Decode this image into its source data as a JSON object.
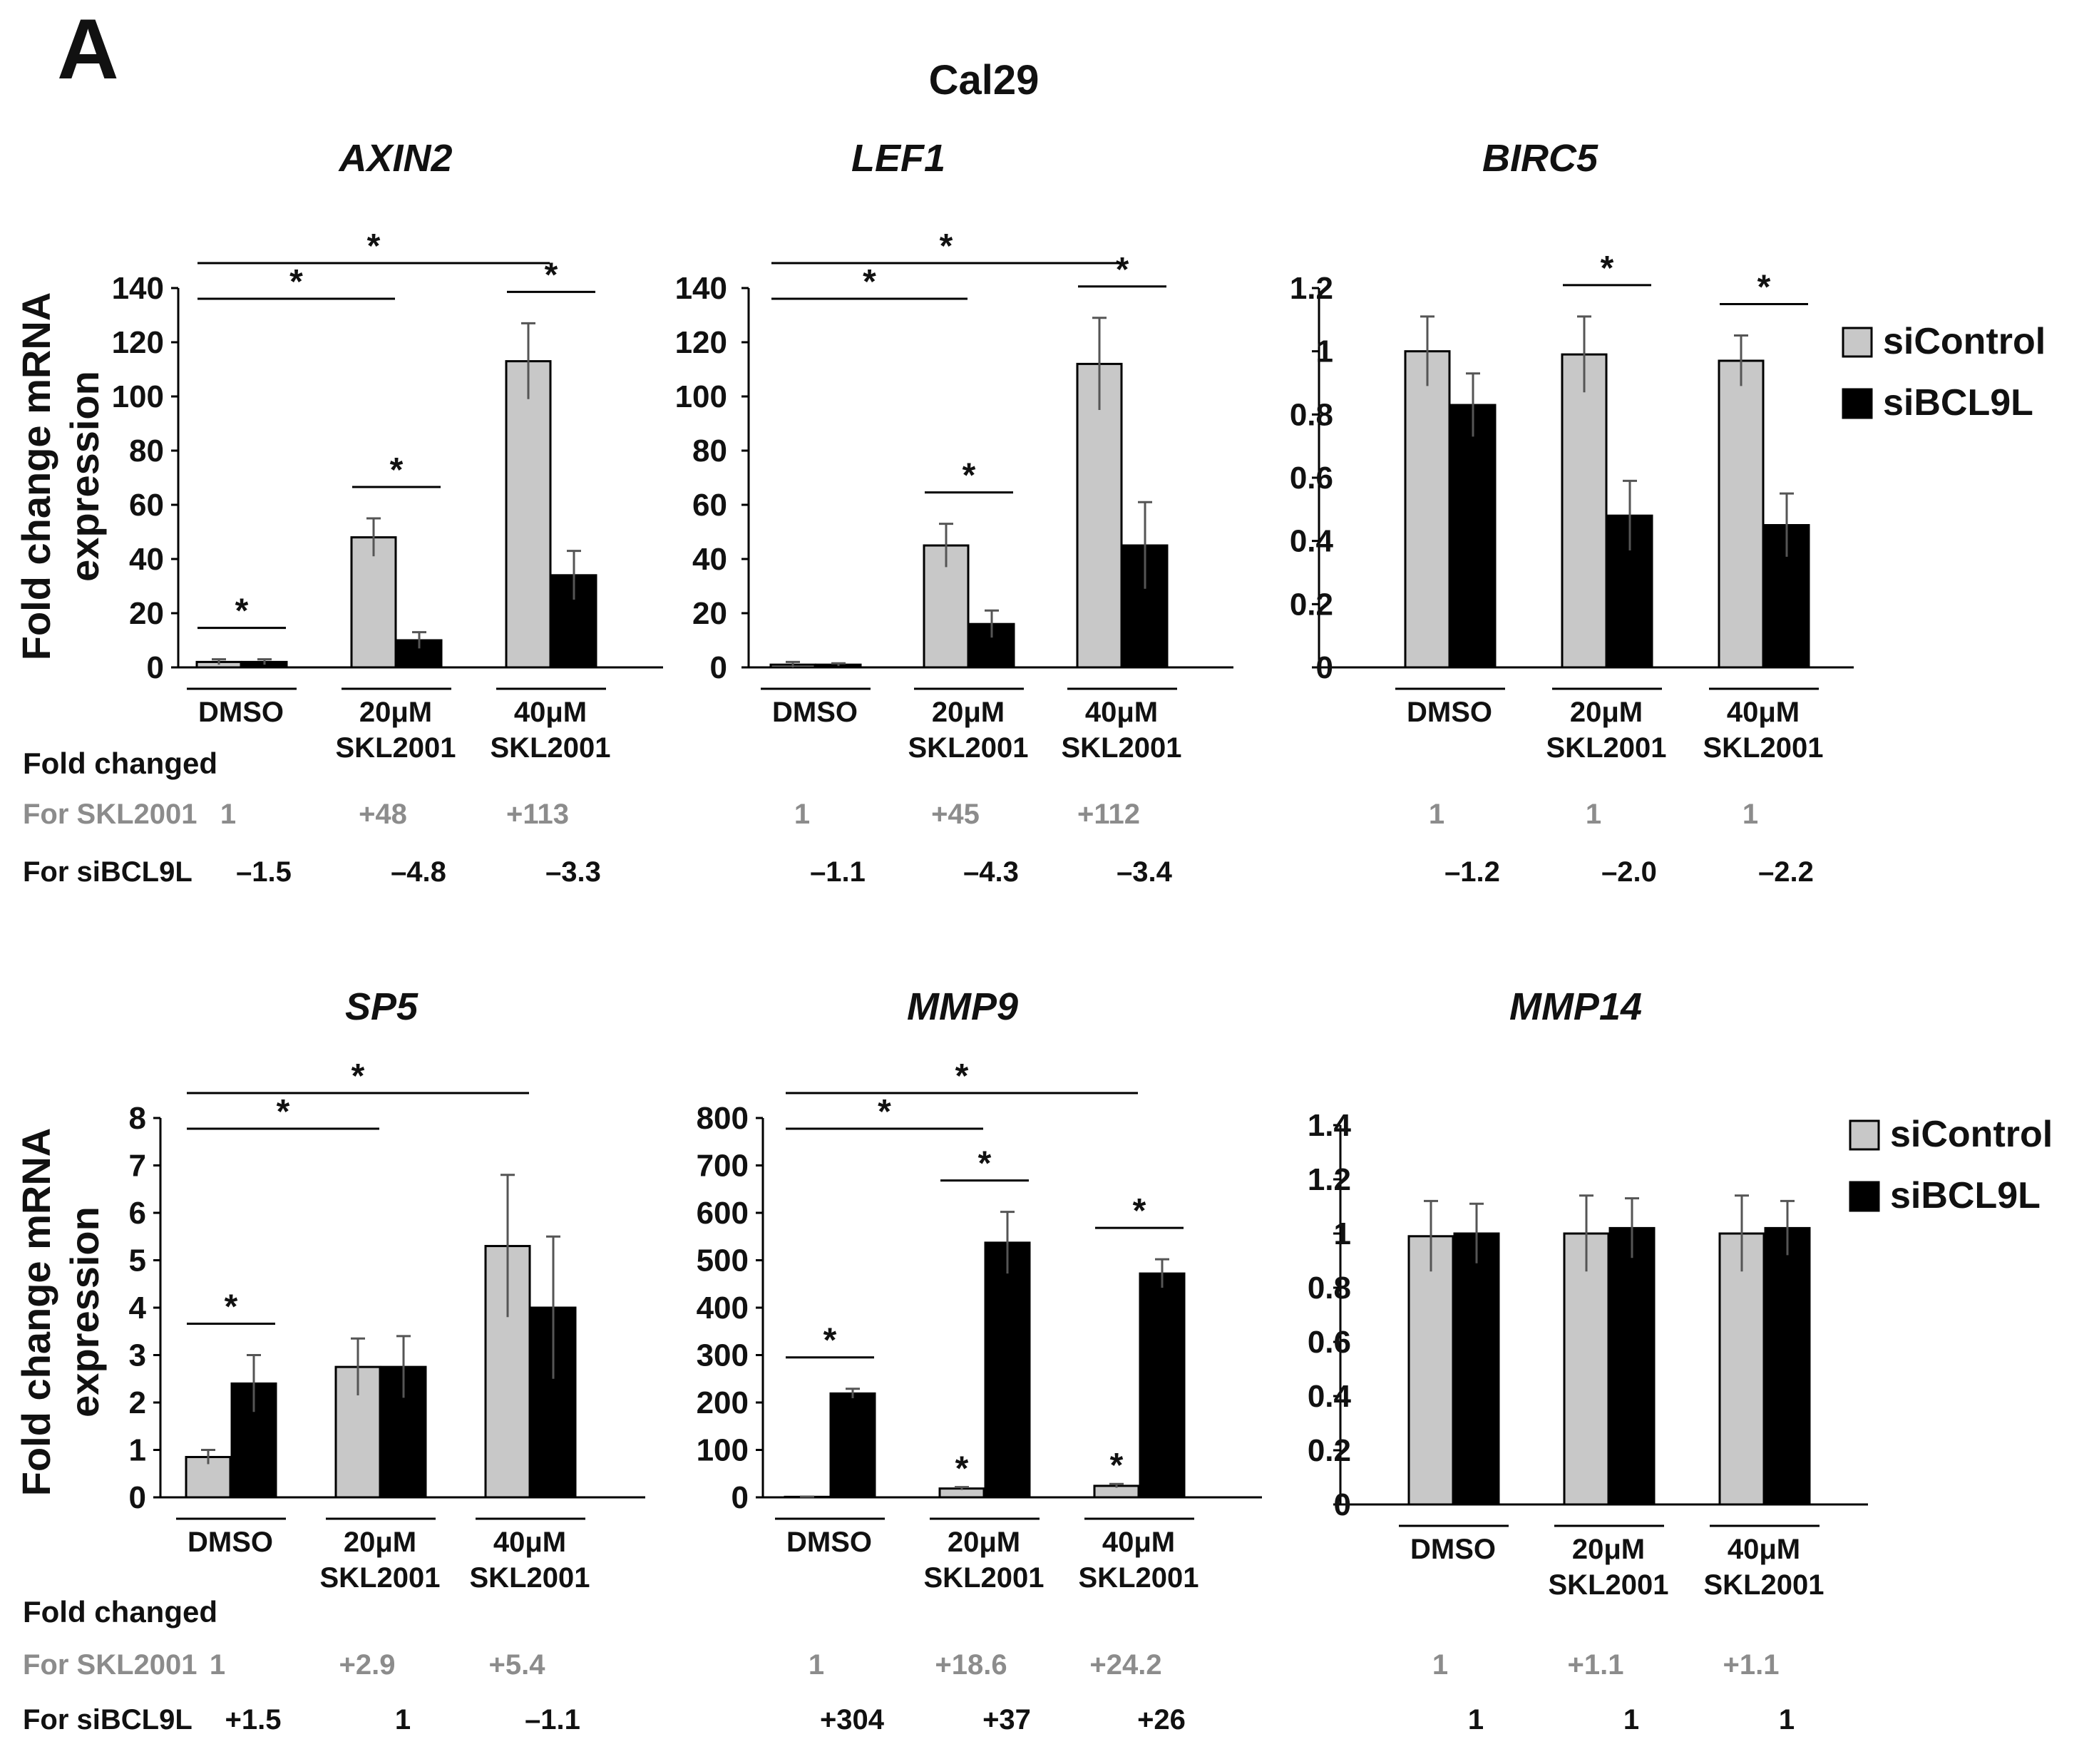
{
  "figure": {
    "panel_letter": "A",
    "cell_line": "Cal29",
    "ylabel_line1": "Fold change mRNA",
    "ylabel_line2": "expression",
    "fold_changed_label": "Fold changed",
    "row_skl_label": "For SKL2001",
    "row_sibcl9l_label": "For siBCL9L",
    "legend": [
      {
        "name": "siControl",
        "color": "#c8c8c8"
      },
      {
        "name": "siBCL9L",
        "color": "#000000"
      }
    ],
    "colors": {
      "siControl": "#c8c8c8",
      "siBCL9L": "#000000",
      "skl_row_text": "#8c8c8c",
      "axis": "#000000"
    }
  },
  "chart_data": [
    {
      "type": "bar",
      "title": "AXIN2",
      "categories": [
        [
          "DMSO"
        ],
        [
          "20μM",
          "SKL2001"
        ],
        [
          "40μM",
          "SKL2001"
        ]
      ],
      "series": [
        {
          "name": "siControl",
          "values": [
            2,
            48,
            113
          ],
          "errors": [
            1,
            7,
            14
          ]
        },
        {
          "name": "siBCL9L",
          "values": [
            2,
            10,
            34
          ],
          "errors": [
            1,
            3,
            9
          ]
        }
      ],
      "ylim": [
        0,
        140
      ],
      "yticks": [
        "0",
        "20",
        "40",
        "60",
        "80",
        "100",
        "120",
        "140"
      ],
      "xlabel": "",
      "ylabel": "Fold change mRNA expression",
      "significance": [
        {
          "from": [
            0,
            0
          ],
          "to": [
            0,
            1
          ],
          "label": "*"
        },
        {
          "from": [
            1,
            0
          ],
          "to": [
            1,
            1
          ],
          "label": "*"
        },
        {
          "from": [
            2,
            0
          ],
          "to": [
            2,
            1
          ],
          "label": "*"
        },
        {
          "from": [
            0,
            0
          ],
          "to": [
            1,
            0
          ],
          "label": "*"
        },
        {
          "from": [
            0,
            0
          ],
          "to": [
            2,
            0
          ],
          "label": "*"
        }
      ],
      "bar_stars": [],
      "fold_skl": [
        "1",
        "+48",
        "+113"
      ],
      "fold_sibcl9l": [
        "–1.5",
        "–4.8",
        "–3.3"
      ]
    },
    {
      "type": "bar",
      "title": "LEF1",
      "categories": [
        [
          "DMSO"
        ],
        [
          "20μM",
          "SKL2001"
        ],
        [
          "40μM",
          "SKL2001"
        ]
      ],
      "series": [
        {
          "name": "siControl",
          "values": [
            1,
            45,
            112
          ],
          "errors": [
            1,
            8,
            17
          ]
        },
        {
          "name": "siBCL9L",
          "values": [
            1,
            16,
            45
          ],
          "errors": [
            0.5,
            5,
            16
          ]
        }
      ],
      "ylim": [
        0,
        140
      ],
      "yticks": [
        "0",
        "20",
        "40",
        "60",
        "80",
        "100",
        "120",
        "140"
      ],
      "xlabel": "",
      "ylabel": "",
      "significance": [
        {
          "from": [
            1,
            0
          ],
          "to": [
            1,
            1
          ],
          "label": "*"
        },
        {
          "from": [
            2,
            0
          ],
          "to": [
            2,
            1
          ],
          "label": "*"
        },
        {
          "from": [
            0,
            0
          ],
          "to": [
            1,
            0
          ],
          "label": "*"
        },
        {
          "from": [
            0,
            0
          ],
          "to": [
            2,
            0
          ],
          "label": "*"
        }
      ],
      "bar_stars": [],
      "fold_skl": [
        "1",
        "+45",
        "+112"
      ],
      "fold_sibcl9l": [
        "–1.1",
        "–4.3",
        "–3.4"
      ]
    },
    {
      "type": "bar",
      "title": "BIRC5",
      "categories": [
        [
          "DMSO"
        ],
        [
          "20μM",
          "SKL2001"
        ],
        [
          "40μM",
          "SKL2001"
        ]
      ],
      "series": [
        {
          "name": "siControl",
          "values": [
            1.0,
            0.99,
            0.97
          ],
          "errors": [
            0.11,
            0.12,
            0.08
          ]
        },
        {
          "name": "siBCL9L",
          "values": [
            0.83,
            0.48,
            0.45
          ],
          "errors": [
            0.1,
            0.11,
            0.1
          ]
        }
      ],
      "ylim": [
        0,
        1.2
      ],
      "yticks": [
        "0",
        "0.2",
        "0.4",
        "0.6",
        "0.8",
        "1",
        "1.2"
      ],
      "xlabel": "",
      "ylabel": "",
      "significance": [
        {
          "from": [
            1,
            0
          ],
          "to": [
            1,
            1
          ],
          "label": "*"
        },
        {
          "from": [
            2,
            0
          ],
          "to": [
            2,
            1
          ],
          "label": "*"
        }
      ],
      "bar_stars": [],
      "fold_skl": [
        "1",
        "1",
        "1"
      ],
      "fold_sibcl9l": [
        "–1.2",
        "–2.0",
        "–2.2"
      ]
    },
    {
      "type": "bar",
      "title": "SP5",
      "categories": [
        [
          "DMSO"
        ],
        [
          "20μM",
          "SKL2001"
        ],
        [
          "40μM",
          "SKL2001"
        ]
      ],
      "series": [
        {
          "name": "siControl",
          "values": [
            0.85,
            2.75,
            5.3
          ],
          "errors": [
            0.15,
            0.6,
            1.5
          ]
        },
        {
          "name": "siBCL9L",
          "values": [
            2.4,
            2.75,
            4.0
          ],
          "errors": [
            0.6,
            0.65,
            1.5
          ]
        }
      ],
      "ylim": [
        0,
        8
      ],
      "yticks": [
        "0",
        "1",
        "2",
        "3",
        "4",
        "5",
        "6",
        "7",
        "8"
      ],
      "xlabel": "",
      "ylabel": "Fold change mRNA expression",
      "significance": [
        {
          "from": [
            0,
            0
          ],
          "to": [
            0,
            1
          ],
          "label": "*"
        },
        {
          "from": [
            0,
            0
          ],
          "to": [
            1,
            0
          ],
          "label": "*"
        },
        {
          "from": [
            0,
            0
          ],
          "to": [
            2,
            0
          ],
          "label": "*"
        }
      ],
      "bar_stars": [],
      "fold_skl": [
        "1",
        "+2.9",
        "+5.4"
      ],
      "fold_sibcl9l": [
        "+1.5",
        "1",
        "–1.1"
      ]
    },
    {
      "type": "bar",
      "title": "MMP9",
      "categories": [
        [
          "DMSO"
        ],
        [
          "20μM",
          "SKL2001"
        ],
        [
          "40μM",
          "SKL2001"
        ]
      ],
      "series": [
        {
          "name": "siControl",
          "values": [
            1,
            18.6,
            24.2
          ],
          "errors": [
            0.5,
            3,
            4
          ]
        },
        {
          "name": "siBCL9L",
          "values": [
            219,
            537,
            472
          ],
          "errors": [
            10,
            65,
            30
          ]
        }
      ],
      "ylim": [
        0,
        800
      ],
      "yticks": [
        "0",
        "100",
        "200",
        "300",
        "400",
        "500",
        "600",
        "700",
        "800"
      ],
      "xlabel": "",
      "ylabel": "",
      "significance": [
        {
          "from": [
            0,
            0
          ],
          "to": [
            0,
            1
          ],
          "label": "*"
        },
        {
          "from": [
            1,
            0
          ],
          "to": [
            1,
            1
          ],
          "label": "*"
        },
        {
          "from": [
            2,
            0
          ],
          "to": [
            2,
            1
          ],
          "label": "*"
        },
        {
          "from": [
            0,
            0
          ],
          "to": [
            1,
            0
          ],
          "label": "*"
        },
        {
          "from": [
            0,
            0
          ],
          "to": [
            2,
            0
          ],
          "label": "*"
        }
      ],
      "bar_stars": [
        {
          "group": 1,
          "series": 0,
          "label": "*"
        },
        {
          "group": 2,
          "series": 0,
          "label": "*"
        }
      ],
      "fold_skl": [
        "1",
        "+18.6",
        "+24.2"
      ],
      "fold_sibcl9l": [
        "+304",
        "+37",
        "+26"
      ]
    },
    {
      "type": "bar",
      "title": "MMP14",
      "categories": [
        [
          "DMSO"
        ],
        [
          "20μM",
          "SKL2001"
        ],
        [
          "40μM",
          "SKL2001"
        ]
      ],
      "series": [
        {
          "name": "siControl",
          "values": [
            0.99,
            1.0,
            1.0
          ],
          "errors": [
            0.13,
            0.14,
            0.14
          ]
        },
        {
          "name": "siBCL9L",
          "values": [
            1.0,
            1.02,
            1.02
          ],
          "errors": [
            0.11,
            0.11,
            0.1
          ]
        }
      ],
      "ylim": [
        0,
        1.4
      ],
      "yticks": [
        "0",
        "0.2",
        "0.4",
        "0.6",
        "0.8",
        "1",
        "1.2",
        "1.4"
      ],
      "xlabel": "",
      "ylabel": "",
      "significance": [],
      "bar_stars": [],
      "fold_skl": [
        "1",
        "+1.1",
        "+1.1"
      ],
      "fold_sibcl9l": [
        "1",
        "1",
        "1"
      ]
    }
  ]
}
